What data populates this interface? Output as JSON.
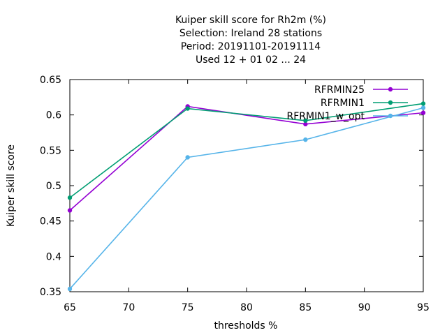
{
  "chart_data": {
    "type": "line",
    "title_lines": [
      "Kuiper skill score  for Rh2m (%)",
      "Selection: Ireland     28 stations",
      "Period: 20191101-20191114",
      "Used  12 + 01 02 ... 24"
    ],
    "xlabel": "thresholds %",
    "ylabel": "Kuiper skill score",
    "xlim": [
      65,
      95
    ],
    "ylim": [
      0.35,
      0.65
    ],
    "xticks": [
      65,
      70,
      75,
      80,
      85,
      90,
      95
    ],
    "xtick_labels": [
      "65",
      "70",
      "75",
      "80",
      "85",
      "90",
      "95"
    ],
    "yticks": [
      0.35,
      0.4,
      0.45,
      0.5,
      0.55,
      0.6,
      0.65
    ],
    "ytick_labels": [
      "0.35",
      "0.4",
      "0.45",
      "0.5",
      "0.55",
      "0.6",
      "0.65"
    ],
    "grid": false,
    "legend_position": "top-right",
    "x": [
      65,
      75,
      85,
      95
    ],
    "series": [
      {
        "name": "RFRMIN25",
        "color": "#9400d3",
        "values": [
          0.465,
          0.612,
          0.587,
          0.603
        ]
      },
      {
        "name": "RFRMIN1",
        "color": "#009e73",
        "values": [
          0.483,
          0.609,
          0.592,
          0.616
        ]
      },
      {
        "name": "RFRMIN1_w_opt",
        "color": "#56b4e9",
        "values": [
          0.354,
          0.54,
          0.565,
          0.61
        ]
      }
    ]
  }
}
